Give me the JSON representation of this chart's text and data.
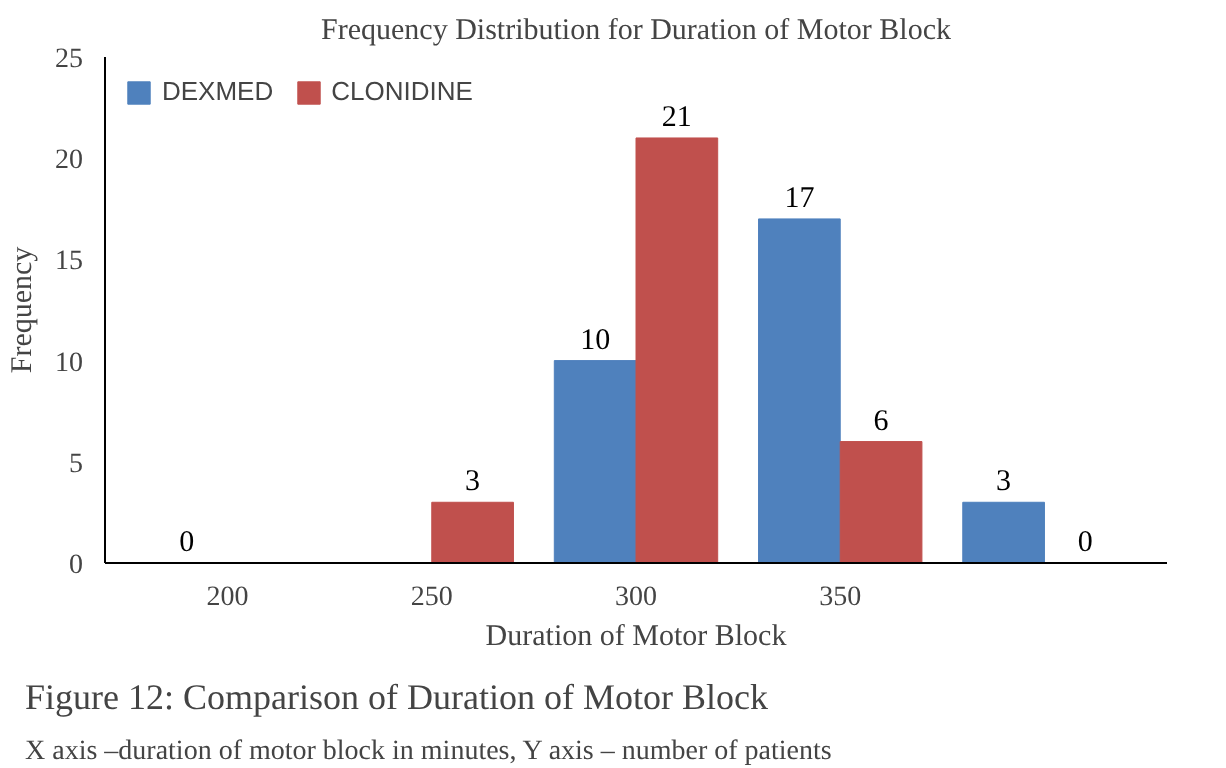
{
  "chart_data": {
    "type": "bar",
    "title": "Frequency Distribution for Duration of Motor Block",
    "xlabel": "Duration of Motor Block",
    "ylabel": "Frequency",
    "categories": [
      "200",
      "250",
      "300",
      "350",
      null
    ],
    "series": [
      {
        "name": "DEXMED",
        "color": "#4f81bd",
        "values": [
          0,
          0,
          10,
          17,
          3
        ],
        "value_labels": [
          "0",
          null,
          "10",
          "17",
          "3"
        ]
      },
      {
        "name": "CLONIDINE",
        "color": "#c0504d",
        "values": [
          0,
          3,
          21,
          6,
          0
        ],
        "value_labels": [
          null,
          "3",
          "21",
          "6",
          "0"
        ]
      }
    ],
    "ylim": [
      0,
      25
    ],
    "yticks": [
      0,
      5,
      10,
      15,
      20,
      25
    ],
    "grid": false,
    "legend": "top left",
    "annotations": [
      "Figure 12: Comparison of Duration of Motor Block",
      "X axis –duration of motor block in minutes, Y axis – number of patients"
    ]
  }
}
